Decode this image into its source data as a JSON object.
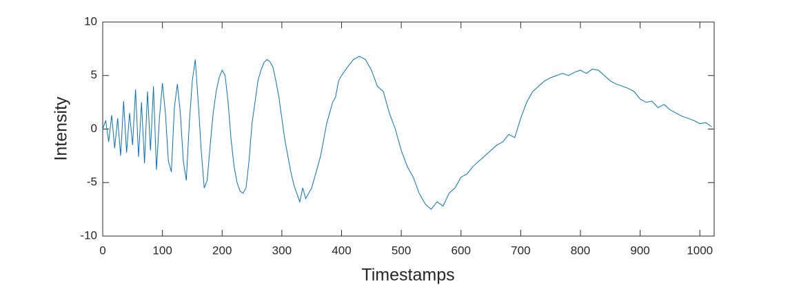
{
  "chart_data": {
    "type": "line",
    "x_label": "Timestamps",
    "y_label": "Intensity",
    "color": "#0072bd",
    "xlim": [
      0,
      1024
    ],
    "ylim": [
      -10,
      10
    ],
    "xticks": [
      0,
      100,
      200,
      300,
      400,
      500,
      600,
      700,
      800,
      900,
      1000
    ],
    "yticks": [
      -10,
      -5,
      0,
      5,
      10
    ],
    "x": [
      0,
      5,
      10,
      15,
      20,
      25,
      30,
      35,
      40,
      45,
      50,
      55,
      60,
      65,
      70,
      75,
      80,
      85,
      90,
      95,
      100,
      105,
      110,
      115,
      120,
      125,
      130,
      135,
      140,
      145,
      150,
      155,
      160,
      165,
      170,
      175,
      180,
      185,
      190,
      195,
      200,
      205,
      210,
      215,
      220,
      225,
      230,
      235,
      240,
      245,
      250,
      255,
      260,
      265,
      270,
      275,
      280,
      285,
      290,
      295,
      300,
      305,
      310,
      315,
      320,
      325,
      330,
      335,
      340,
      345,
      350,
      355,
      360,
      365,
      370,
      375,
      380,
      385,
      390,
      395,
      400,
      410,
      420,
      430,
      440,
      450,
      460,
      470,
      480,
      490,
      500,
      510,
      520,
      530,
      540,
      550,
      560,
      570,
      580,
      590,
      600,
      610,
      620,
      630,
      640,
      650,
      660,
      670,
      680,
      690,
      700,
      710,
      720,
      730,
      740,
      750,
      760,
      770,
      780,
      790,
      800,
      810,
      820,
      830,
      840,
      850,
      860,
      870,
      880,
      890,
      900,
      910,
      920,
      930,
      940,
      950,
      960,
      970,
      980,
      990,
      1000,
      1010,
      1020
    ],
    "values": [
      0,
      0.8,
      -1.2,
      1.3,
      -1.8,
      1.0,
      -2.5,
      2.6,
      -2.2,
      1.5,
      -1.5,
      3.7,
      -2.6,
      2.5,
      -3.2,
      3.5,
      -2.0,
      4.0,
      -3.8,
      1.0,
      4.3,
      1.5,
      -3.0,
      -4.0,
      2.0,
      4.2,
      1.5,
      -3.0,
      -4.8,
      0.5,
      4.5,
      6.5,
      2.5,
      -2.0,
      -5.5,
      -4.8,
      -1.5,
      1.5,
      3.5,
      4.8,
      5.5,
      5.0,
      2.5,
      -1.0,
      -3.5,
      -5.0,
      -5.8,
      -6.0,
      -5.5,
      -3.0,
      0.5,
      2.5,
      4.5,
      5.5,
      6.2,
      6.5,
      6.3,
      5.8,
      4.5,
      3.0,
      1.0,
      -1.0,
      -2.5,
      -4.0,
      -5.2,
      -6.0,
      -6.8,
      -5.5,
      -6.5,
      -6.0,
      -5.5,
      -4.5,
      -3.5,
      -2.5,
      -1.0,
      0.5,
      1.5,
      2.5,
      3.0,
      4.5,
      5.0,
      5.8,
      6.5,
      6.8,
      6.5,
      5.5,
      4.0,
      3.5,
      1.5,
      0.0,
      -2.0,
      -3.5,
      -4.5,
      -6.0,
      -7.0,
      -7.5,
      -6.8,
      -7.2,
      -6.0,
      -5.5,
      -4.5,
      -4.2,
      -3.5,
      -3.0,
      -2.5,
      -2.0,
      -1.5,
      -1.2,
      -0.5,
      -0.8,
      1.0,
      2.5,
      3.5,
      4.0,
      4.5,
      4.8,
      5.0,
      5.2,
      5.0,
      5.3,
      5.5,
      5.2,
      5.6,
      5.5,
      5.0,
      4.5,
      4.2,
      4.0,
      3.8,
      3.5,
      2.8,
      2.5,
      2.6,
      2.0,
      2.3,
      1.8,
      1.5,
      1.2,
      1.0,
      0.8,
      0.5,
      0.6,
      0.2
    ]
  }
}
